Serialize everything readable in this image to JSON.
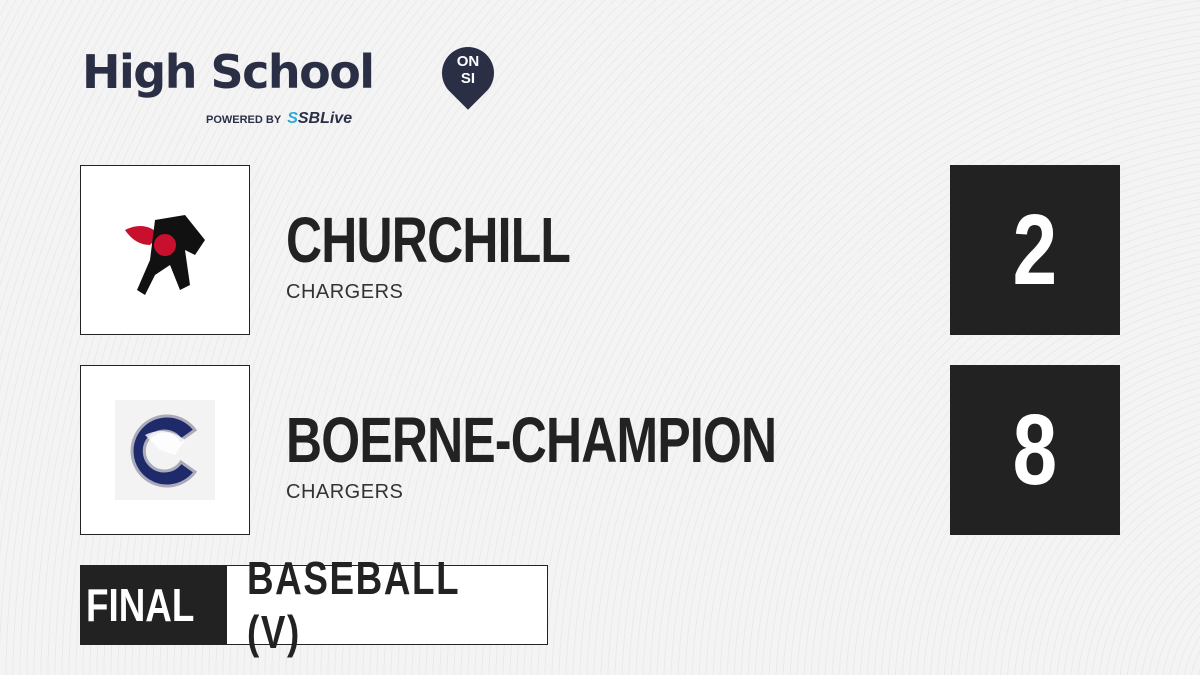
{
  "brand": {
    "title": "High School",
    "badge_line1": "ON",
    "badge_line2": "SI",
    "powered_by": "POWERED BY",
    "partner": "SBLive"
  },
  "teams": [
    {
      "name": "CHURCHILL",
      "mascot": "CHARGERS",
      "score": "2",
      "logo_color": "#c8102e"
    },
    {
      "name": "BOERNE-CHAMPION",
      "mascot": "CHARGERS",
      "score": "8",
      "logo_color": "#1f2a6b"
    }
  ],
  "status": "FINAL",
  "sport": "BASEBALL (V)"
}
